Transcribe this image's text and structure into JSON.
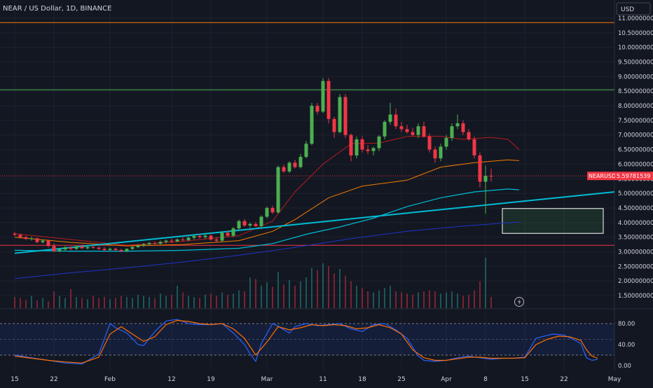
{
  "header": {
    "title": "NEAR / US Dollar, 1D, BINANCE"
  },
  "currency_button": {
    "label": "USD"
  },
  "price_tag": {
    "symbol": "NEARUSD",
    "value": "5.59781539"
  },
  "colors": {
    "background": "#131722",
    "up": "#26a69a",
    "candle_up": "#4caf50",
    "candle_down": "#f23645",
    "orange": "#f57c00",
    "green_level": "#4caf50",
    "cyan": "#00bcd4",
    "navy": "#1e35c8",
    "red_ma": "#b71c1c",
    "stoch_k": "#2962ff",
    "stoch_d": "#ff6d00"
  },
  "chart_data": {
    "type": "candlestick",
    "price_axis": {
      "ticks": [
        {
          "value": 11.0,
          "label": "11.00000000"
        },
        {
          "value": 10.5,
          "label": "10.50000000"
        },
        {
          "value": 10.0,
          "label": "10.00000000"
        },
        {
          "value": 9.5,
          "label": "9.50000000"
        },
        {
          "value": 9.0,
          "label": "9.00000000"
        },
        {
          "value": 8.5,
          "label": "8.50000000"
        },
        {
          "value": 8.0,
          "label": "8.00000000"
        },
        {
          "value": 7.5,
          "label": "7.50000000"
        },
        {
          "value": 7.0,
          "label": "7.00000000"
        },
        {
          "value": 6.5,
          "label": "6.50000000"
        },
        {
          "value": 6.0,
          "label": "6.00000000"
        },
        {
          "value": 5.5,
          "label": "5.50000000"
        },
        {
          "value": 5.0,
          "label": "5.00000000"
        },
        {
          "value": 4.5,
          "label": "4.50000000"
        },
        {
          "value": 4.0,
          "label": "4.00000000"
        },
        {
          "value": 3.5,
          "label": "3.50000000"
        },
        {
          "value": 3.0,
          "label": "3.00000000"
        },
        {
          "value": 2.5,
          "label": "2.50000000"
        },
        {
          "value": 2.0,
          "label": "2.00000000"
        },
        {
          "value": 1.5,
          "label": "1.50000000"
        }
      ]
    },
    "time_axis": {
      "labels": [
        {
          "day": 0,
          "label": "15"
        },
        {
          "day": 7,
          "label": "22"
        },
        {
          "day": 17,
          "label": "Feb"
        },
        {
          "day": 28,
          "label": "12"
        },
        {
          "day": 35,
          "label": "19"
        },
        {
          "day": 45,
          "label": "Mar"
        },
        {
          "day": 55,
          "label": "11"
        },
        {
          "day": 62,
          "label": "18"
        },
        {
          "day": 69,
          "label": "25"
        },
        {
          "day": 77,
          "label": "Apr"
        },
        {
          "day": 84,
          "label": "8"
        },
        {
          "day": 91,
          "label": "15"
        },
        {
          "day": 98,
          "label": "22"
        },
        {
          "day": 107,
          "label": "May"
        }
      ]
    },
    "horizontal_levels": [
      {
        "price": 10.85,
        "color_key": "orange"
      },
      {
        "price": 8.55,
        "color_key": "green_level"
      },
      {
        "price": 3.22,
        "color_key": "candle_down"
      }
    ],
    "current_price": 5.5978,
    "candles": [
      [
        3.62,
        3.68,
        3.54,
        3.58
      ],
      [
        3.58,
        3.62,
        3.45,
        3.5
      ],
      [
        3.5,
        3.55,
        3.4,
        3.44
      ],
      [
        3.44,
        3.52,
        3.38,
        3.46
      ],
      [
        3.46,
        3.48,
        3.3,
        3.33
      ],
      [
        3.33,
        3.42,
        3.28,
        3.38
      ],
      [
        3.38,
        3.4,
        3.15,
        3.2
      ],
      [
        3.2,
        3.28,
        2.98,
        3.02
      ],
      [
        3.02,
        3.12,
        2.98,
        3.08
      ],
      [
        3.08,
        3.2,
        3.04,
        3.15
      ],
      [
        3.15,
        3.18,
        3.05,
        3.1
      ],
      [
        3.1,
        3.22,
        3.06,
        3.18
      ],
      [
        3.18,
        3.24,
        3.1,
        3.12
      ],
      [
        3.12,
        3.2,
        3.08,
        3.16
      ],
      [
        3.16,
        3.22,
        3.1,
        3.14
      ],
      [
        3.14,
        3.18,
        3.06,
        3.1
      ],
      [
        3.1,
        3.16,
        3.02,
        3.06
      ],
      [
        3.06,
        3.14,
        3.02,
        3.1
      ],
      [
        3.1,
        3.14,
        3.02,
        3.06
      ],
      [
        3.06,
        3.1,
        2.98,
        3.02
      ],
      [
        3.02,
        3.12,
        2.98,
        3.1
      ],
      [
        3.1,
        3.2,
        3.06,
        3.16
      ],
      [
        3.16,
        3.26,
        3.12,
        3.22
      ],
      [
        3.22,
        3.3,
        3.16,
        3.26
      ],
      [
        3.26,
        3.34,
        3.2,
        3.3
      ],
      [
        3.3,
        3.36,
        3.22,
        3.28
      ],
      [
        3.28,
        3.38,
        3.24,
        3.34
      ],
      [
        3.34,
        3.42,
        3.28,
        3.38
      ],
      [
        3.38,
        3.45,
        3.3,
        3.36
      ],
      [
        3.36,
        3.46,
        3.32,
        3.42
      ],
      [
        3.42,
        3.5,
        3.36,
        3.4
      ],
      [
        3.4,
        3.52,
        3.36,
        3.48
      ],
      [
        3.48,
        3.58,
        3.42,
        3.54
      ],
      [
        3.54,
        3.62,
        3.45,
        3.5
      ],
      [
        3.5,
        3.6,
        3.44,
        3.55
      ],
      [
        3.55,
        3.6,
        3.38,
        3.42
      ],
      [
        3.42,
        3.5,
        3.34,
        3.38
      ],
      [
        3.38,
        3.7,
        3.34,
        3.65
      ],
      [
        3.65,
        3.72,
        3.5,
        3.55
      ],
      [
        3.55,
        3.85,
        3.5,
        3.8
      ],
      [
        3.8,
        4.1,
        3.75,
        4.05
      ],
      [
        4.05,
        4.12,
        3.85,
        3.9
      ],
      [
        3.9,
        4.0,
        3.82,
        3.95
      ],
      [
        3.95,
        4.02,
        3.85,
        3.88
      ],
      [
        3.88,
        4.25,
        3.84,
        4.2
      ],
      [
        4.2,
        4.55,
        4.15,
        4.5
      ],
      [
        4.5,
        4.58,
        4.3,
        4.35
      ],
      [
        4.35,
        5.95,
        4.3,
        5.9
      ],
      [
        5.9,
        5.98,
        5.7,
        5.75
      ],
      [
        5.75,
        6.1,
        5.7,
        6.05
      ],
      [
        6.05,
        6.15,
        5.85,
        5.9
      ],
      [
        5.9,
        6.35,
        5.85,
        6.25
      ],
      [
        6.25,
        6.8,
        6.2,
        6.7
      ],
      [
        6.7,
        8.1,
        6.65,
        8.0
      ],
      [
        8.0,
        8.1,
        7.7,
        7.8
      ],
      [
        7.8,
        8.95,
        7.75,
        8.85
      ],
      [
        8.85,
        8.95,
        7.4,
        7.55
      ],
      [
        7.55,
        7.62,
        6.9,
        7.1
      ],
      [
        7.1,
        8.4,
        7.05,
        8.3
      ],
      [
        8.3,
        8.4,
        6.9,
        7.0
      ],
      [
        7.0,
        7.05,
        6.1,
        6.3
      ],
      [
        6.3,
        6.95,
        6.2,
        6.85
      ],
      [
        6.85,
        6.95,
        6.4,
        6.5
      ],
      [
        6.5,
        6.65,
        6.35,
        6.45
      ],
      [
        6.45,
        6.6,
        6.3,
        6.55
      ],
      [
        6.55,
        7.0,
        6.45,
        6.95
      ],
      [
        6.95,
        7.5,
        6.85,
        7.45
      ],
      [
        7.45,
        8.1,
        7.35,
        7.7
      ],
      [
        7.7,
        7.9,
        7.2,
        7.3
      ],
      [
        7.3,
        7.45,
        7.1,
        7.2
      ],
      [
        7.2,
        7.35,
        7.05,
        7.1
      ],
      [
        7.1,
        7.25,
        6.95,
        7.0
      ],
      [
        7.0,
        7.4,
        6.9,
        7.3
      ],
      [
        7.3,
        7.45,
        6.9,
        6.95
      ],
      [
        6.95,
        7.05,
        6.4,
        6.5
      ],
      [
        6.5,
        6.6,
        6.05,
        6.2
      ],
      [
        6.2,
        6.7,
        6.1,
        6.6
      ],
      [
        6.6,
        7.0,
        6.5,
        6.9
      ],
      [
        6.9,
        7.4,
        6.8,
        7.3
      ],
      [
        7.3,
        7.7,
        7.2,
        7.4
      ],
      [
        7.4,
        7.5,
        7.0,
        7.1
      ],
      [
        7.1,
        7.2,
        6.8,
        6.85
      ],
      [
        6.85,
        6.95,
        6.2,
        6.3
      ],
      [
        6.3,
        6.4,
        5.2,
        5.4
      ],
      [
        5.4,
        5.95,
        4.3,
        5.6
      ],
      [
        5.6,
        5.85,
        5.4,
        5.59
      ]
    ],
    "moving_averages": [
      {
        "name": "",
        "color_key": "red_ma",
        "points": [
          [
            0,
            3.62
          ],
          [
            10,
            3.42
          ],
          [
            20,
            3.22
          ],
          [
            30,
            3.36
          ],
          [
            40,
            3.55
          ],
          [
            46,
            4.05
          ],
          [
            50,
            5.05
          ],
          [
            55,
            6.0
          ],
          [
            60,
            6.7
          ],
          [
            65,
            6.72
          ],
          [
            70,
            6.95
          ],
          [
            76,
            6.95
          ],
          [
            80,
            6.85
          ],
          [
            85,
            6.92
          ],
          [
            88,
            6.85
          ],
          [
            90,
            6.5
          ]
        ]
      },
      {
        "name": "",
        "color_key": "orange",
        "points": [
          [
            0,
            3.5
          ],
          [
            10,
            3.32
          ],
          [
            20,
            3.2
          ],
          [
            30,
            3.25
          ],
          [
            40,
            3.38
          ],
          [
            46,
            3.7
          ],
          [
            50,
            4.1
          ],
          [
            56,
            4.85
          ],
          [
            62,
            5.25
          ],
          [
            70,
            5.45
          ],
          [
            76,
            5.9
          ],
          [
            82,
            6.05
          ],
          [
            88,
            6.15
          ],
          [
            90,
            6.12
          ]
        ]
      },
      {
        "name": "",
        "color_key": "cyan",
        "points": [
          [
            0,
            3.05
          ],
          [
            10,
            3.02
          ],
          [
            20,
            3.02
          ],
          [
            30,
            3.05
          ],
          [
            40,
            3.12
          ],
          [
            46,
            3.28
          ],
          [
            52,
            3.6
          ],
          [
            58,
            3.85
          ],
          [
            64,
            4.15
          ],
          [
            70,
            4.55
          ],
          [
            76,
            4.85
          ],
          [
            82,
            5.05
          ],
          [
            88,
            5.15
          ],
          [
            90,
            5.12
          ]
        ]
      },
      {
        "name": "",
        "color_key": "navy",
        "points": [
          [
            0,
            2.08
          ],
          [
            10,
            2.28
          ],
          [
            20,
            2.45
          ],
          [
            30,
            2.65
          ],
          [
            40,
            2.88
          ],
          [
            50,
            3.15
          ],
          [
            60,
            3.45
          ],
          [
            70,
            3.7
          ],
          [
            80,
            3.88
          ],
          [
            90,
            4.02
          ]
        ]
      }
    ],
    "trendline": {
      "from": [
        0,
        2.95
      ],
      "to": [
        107,
        5.05
      ],
      "color_key": "cyan"
    },
    "target_zone": {
      "from_day": 87,
      "to_day": 105,
      "top": 4.48,
      "bottom": 3.63
    },
    "volume": [
      0.2,
      0.18,
      0.15,
      0.22,
      0.14,
      0.18,
      0.12,
      0.3,
      0.22,
      0.18,
      0.34,
      0.2,
      0.18,
      0.16,
      0.22,
      0.18,
      0.2,
      0.16,
      0.18,
      0.22,
      0.2,
      0.18,
      0.24,
      0.22,
      0.2,
      0.18,
      0.26,
      0.22,
      0.24,
      0.4,
      0.28,
      0.22,
      0.2,
      0.18,
      0.24,
      0.26,
      0.22,
      0.28,
      0.24,
      0.26,
      0.32,
      0.3,
      0.55,
      0.52,
      0.4,
      0.46,
      0.38,
      0.65,
      0.42,
      0.5,
      0.4,
      0.48,
      0.55,
      0.72,
      0.68,
      0.8,
      0.75,
      0.62,
      0.7,
      0.58,
      0.48,
      0.4,
      0.36,
      0.3,
      0.28,
      0.32,
      0.36,
      0.4,
      0.3,
      0.28,
      0.26,
      0.24,
      0.28,
      0.3,
      0.32,
      0.3,
      0.26,
      0.28,
      0.3,
      0.26,
      0.22,
      0.24,
      0.32,
      0.48,
      0.9,
      0.2
    ],
    "stochastic": {
      "ticks": [
        {
          "value": 80,
          "label": "80.00"
        },
        {
          "value": 40,
          "label": "40.00"
        },
        {
          "value": 0,
          "label": "0.00"
        }
      ],
      "band": [
        20,
        80
      ],
      "mid": 50,
      "k": [
        [
          0,
          20
        ],
        [
          3,
          15
        ],
        [
          6,
          10
        ],
        [
          9,
          5
        ],
        [
          12,
          3
        ],
        [
          15,
          22
        ],
        [
          17,
          80
        ],
        [
          18,
          72
        ],
        [
          20,
          62
        ],
        [
          22,
          40
        ],
        [
          23,
          38
        ],
        [
          25,
          65
        ],
        [
          27,
          85
        ],
        [
          29,
          88
        ],
        [
          31,
          80
        ],
        [
          33,
          78
        ],
        [
          35,
          78
        ],
        [
          37,
          80
        ],
        [
          39,
          62
        ],
        [
          41,
          40
        ],
        [
          42,
          22
        ],
        [
          43,
          8
        ],
        [
          44,
          42
        ],
        [
          46,
          80
        ],
        [
          47,
          75
        ],
        [
          49,
          62
        ],
        [
          50,
          74
        ],
        [
          52,
          80
        ],
        [
          54,
          76
        ],
        [
          56,
          78
        ],
        [
          58,
          80
        ],
        [
          60,
          70
        ],
        [
          62,
          65
        ],
        [
          64,
          78
        ],
        [
          66,
          80
        ],
        [
          68,
          68
        ],
        [
          70,
          52
        ],
        [
          72,
          18
        ],
        [
          73,
          10
        ],
        [
          75,
          8
        ],
        [
          77,
          10
        ],
        [
          79,
          15
        ],
        [
          81,
          18
        ],
        [
          83,
          15
        ],
        [
          85,
          12
        ],
        [
          87,
          14
        ],
        [
          89,
          14
        ],
        [
          91,
          16
        ],
        [
          93,
          52
        ],
        [
          94,
          55
        ],
        [
          96,
          60
        ],
        [
          98,
          58
        ],
        [
          100,
          48
        ],
        [
          101,
          42
        ],
        [
          102,
          15
        ],
        [
          103,
          10
        ],
        [
          104,
          12
        ]
      ],
      "d": [
        [
          0,
          18
        ],
        [
          3,
          14
        ],
        [
          6,
          10
        ],
        [
          9,
          7
        ],
        [
          12,
          5
        ],
        [
          15,
          16
        ],
        [
          17,
          60
        ],
        [
          19,
          74
        ],
        [
          21,
          60
        ],
        [
          23,
          46
        ],
        [
          25,
          55
        ],
        [
          27,
          78
        ],
        [
          29,
          86
        ],
        [
          31,
          84
        ],
        [
          33,
          80
        ],
        [
          35,
          78
        ],
        [
          37,
          80
        ],
        [
          39,
          70
        ],
        [
          41,
          52
        ],
        [
          43,
          20
        ],
        [
          45,
          45
        ],
        [
          47,
          74
        ],
        [
          49,
          68
        ],
        [
          51,
          72
        ],
        [
          53,
          78
        ],
        [
          55,
          76
        ],
        [
          57,
          78
        ],
        [
          59,
          76
        ],
        [
          61,
          70
        ],
        [
          63,
          72
        ],
        [
          65,
          78
        ],
        [
          67,
          72
        ],
        [
          69,
          60
        ],
        [
          71,
          30
        ],
        [
          73,
          15
        ],
        [
          75,
          10
        ],
        [
          77,
          10
        ],
        [
          79,
          13
        ],
        [
          81,
          16
        ],
        [
          83,
          16
        ],
        [
          85,
          14
        ],
        [
          87,
          14
        ],
        [
          89,
          14
        ],
        [
          91,
          15
        ],
        [
          93,
          40
        ],
        [
          95,
          50
        ],
        [
          97,
          56
        ],
        [
          99,
          55
        ],
        [
          101,
          48
        ],
        [
          102,
          30
        ],
        [
          103,
          18
        ],
        [
          104,
          14
        ]
      ]
    }
  }
}
